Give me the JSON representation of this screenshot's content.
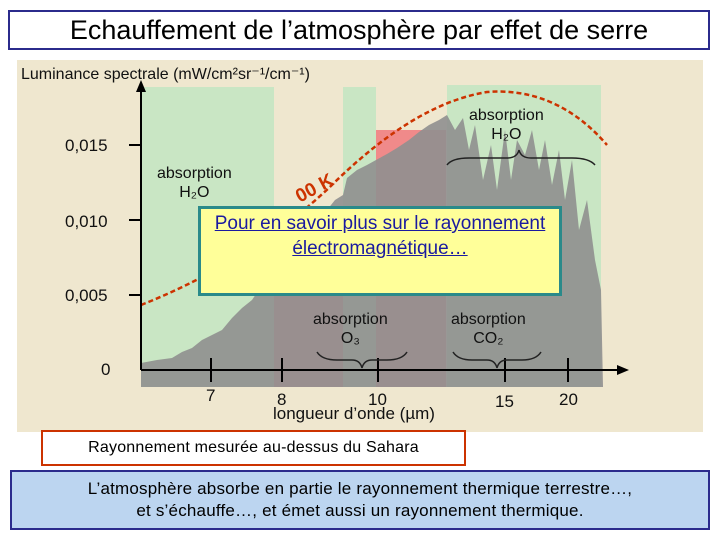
{
  "title": "Echauffement de l’atmosphère par effet de serre",
  "figure": {
    "y_axis_label": "Luminance spectrale (mW/cm²sr⁻¹/cm⁻¹)",
    "y_ticks": [
      "0,015",
      "0,010",
      "0,005",
      "0"
    ],
    "x_ticks": [
      "7",
      "8",
      "10",
      "15",
      "20"
    ],
    "x_axis_label": "longueur d’onde (µm)",
    "bands": [
      {
        "line1": "absorption",
        "line2": "H₂O"
      },
      {
        "line1": "absorption",
        "line2": "O₃"
      },
      {
        "line1": "absorption",
        "line2": "CO₂"
      },
      {
        "line1": "absorption",
        "line2": "H₂O"
      }
    ],
    "curve_label": "00 K",
    "colors": {
      "background": "#efe7cf",
      "absorption": "#c9e6c4",
      "window": "#f08a8a",
      "spectrum": "#8a8a8a",
      "curve": "#cc3300"
    }
  },
  "popup_link": "Pour en savoir plus sur le rayonnement électromagnétique…",
  "caption": "Rayonnement mesurée au-dessus du Sahara",
  "footer": {
    "line1": "L’atmosphère absorbe en partie le rayonnement thermique terrestre…,",
    "line2": "et s’échauffe…,  et émet aussi un rayonnement thermique."
  }
}
